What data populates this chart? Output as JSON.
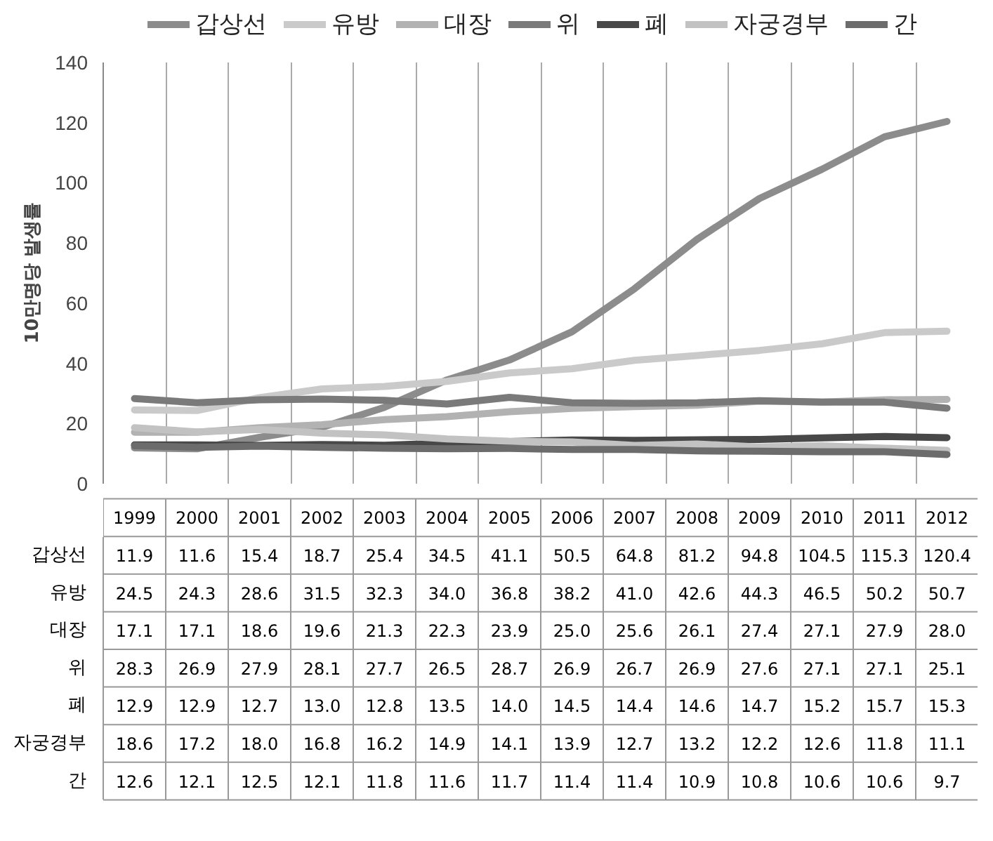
{
  "chart_data": {
    "type": "line",
    "ylabel": "10만명당 발생률",
    "categories": [
      "1999",
      "2000",
      "2001",
      "2002",
      "2003",
      "2004",
      "2005",
      "2006",
      "2007",
      "2008",
      "2009",
      "2010",
      "2011",
      "2012"
    ],
    "series": [
      {
        "name": "갑상선",
        "color": "#8c8c8c",
        "values": [
          11.9,
          11.6,
          15.4,
          18.7,
          25.4,
          34.5,
          41.1,
          50.5,
          64.8,
          81.2,
          94.8,
          104.5,
          115.3,
          120.4
        ],
        "value_labels": [
          "11.9",
          "11.6",
          "15.4",
          "18.7",
          "25.4",
          "34.5",
          "41.1",
          "50.5",
          "64.8",
          "81.2",
          "94.8",
          "104.5",
          "115.3",
          "120.4"
        ]
      },
      {
        "name": "유방",
        "color": "#cacaca",
        "values": [
          24.5,
          24.3,
          28.6,
          31.5,
          32.3,
          34.0,
          36.8,
          38.2,
          41.0,
          42.6,
          44.3,
          46.5,
          50.2,
          50.7
        ],
        "value_labels": [
          "24.5",
          "24.3",
          "28.6",
          "31.5",
          "32.3",
          "34.0",
          "36.8",
          "38.2",
          "41.0",
          "42.6",
          "44.3",
          "46.5",
          "50.2",
          "50.7"
        ]
      },
      {
        "name": "대장",
        "color": "#b2b2b2",
        "values": [
          17.1,
          17.1,
          18.6,
          19.6,
          21.3,
          22.3,
          23.9,
          25.0,
          25.6,
          26.1,
          27.4,
          27.1,
          27.9,
          28.0
        ],
        "value_labels": [
          "17.1",
          "17.1",
          "18.6",
          "19.6",
          "21.3",
          "22.3",
          "23.9",
          "25.0",
          "25.6",
          "26.1",
          "27.4",
          "27.1",
          "27.9",
          "28.0"
        ]
      },
      {
        "name": "위",
        "color": "#7a7a7a",
        "values": [
          28.3,
          26.9,
          27.9,
          28.1,
          27.7,
          26.5,
          28.7,
          26.9,
          26.7,
          26.9,
          27.6,
          27.1,
          27.1,
          25.1
        ],
        "value_labels": [
          "28.3",
          "26.9",
          "27.9",
          "28.1",
          "27.7",
          "26.5",
          "28.7",
          "26.9",
          "26.7",
          "26.9",
          "27.6",
          "27.1",
          "27.1",
          "25.1"
        ]
      },
      {
        "name": "폐",
        "color": "#484848",
        "values": [
          12.9,
          12.9,
          12.7,
          13.0,
          12.8,
          13.5,
          14.0,
          14.5,
          14.4,
          14.6,
          14.7,
          15.2,
          15.7,
          15.3
        ],
        "value_labels": [
          "12.9",
          "12.9",
          "12.7",
          "13.0",
          "12.8",
          "13.5",
          "14.0",
          "14.5",
          "14.4",
          "14.6",
          "14.7",
          "15.2",
          "15.7",
          "15.3"
        ]
      },
      {
        "name": "자궁경부",
        "color": "#c2c2c2",
        "values": [
          18.6,
          17.2,
          18.0,
          16.8,
          16.2,
          14.9,
          14.1,
          13.9,
          12.7,
          13.2,
          12.2,
          12.6,
          11.8,
          11.1
        ],
        "value_labels": [
          "18.6",
          "17.2",
          "18.0",
          "16.8",
          "16.2",
          "14.9",
          "14.1",
          "13.9",
          "12.7",
          "13.2",
          "12.2",
          "12.6",
          "11.8",
          "11.1"
        ]
      },
      {
        "name": "간",
        "color": "#6c6c6c",
        "values": [
          12.6,
          12.1,
          12.5,
          12.1,
          11.8,
          11.6,
          11.7,
          11.4,
          11.4,
          10.9,
          10.8,
          10.6,
          10.6,
          9.7
        ],
        "value_labels": [
          "12.6",
          "12.1",
          "12.5",
          "12.1",
          "11.8",
          "11.6",
          "11.7",
          "11.4",
          "11.4",
          "10.9",
          "10.8",
          "10.6",
          "10.6",
          "9.7"
        ]
      }
    ],
    "ylim": [
      0,
      140
    ],
    "yticks": [
      0,
      20,
      40,
      60,
      80,
      100,
      120,
      140
    ],
    "grid": "x",
    "legend": "top"
  }
}
